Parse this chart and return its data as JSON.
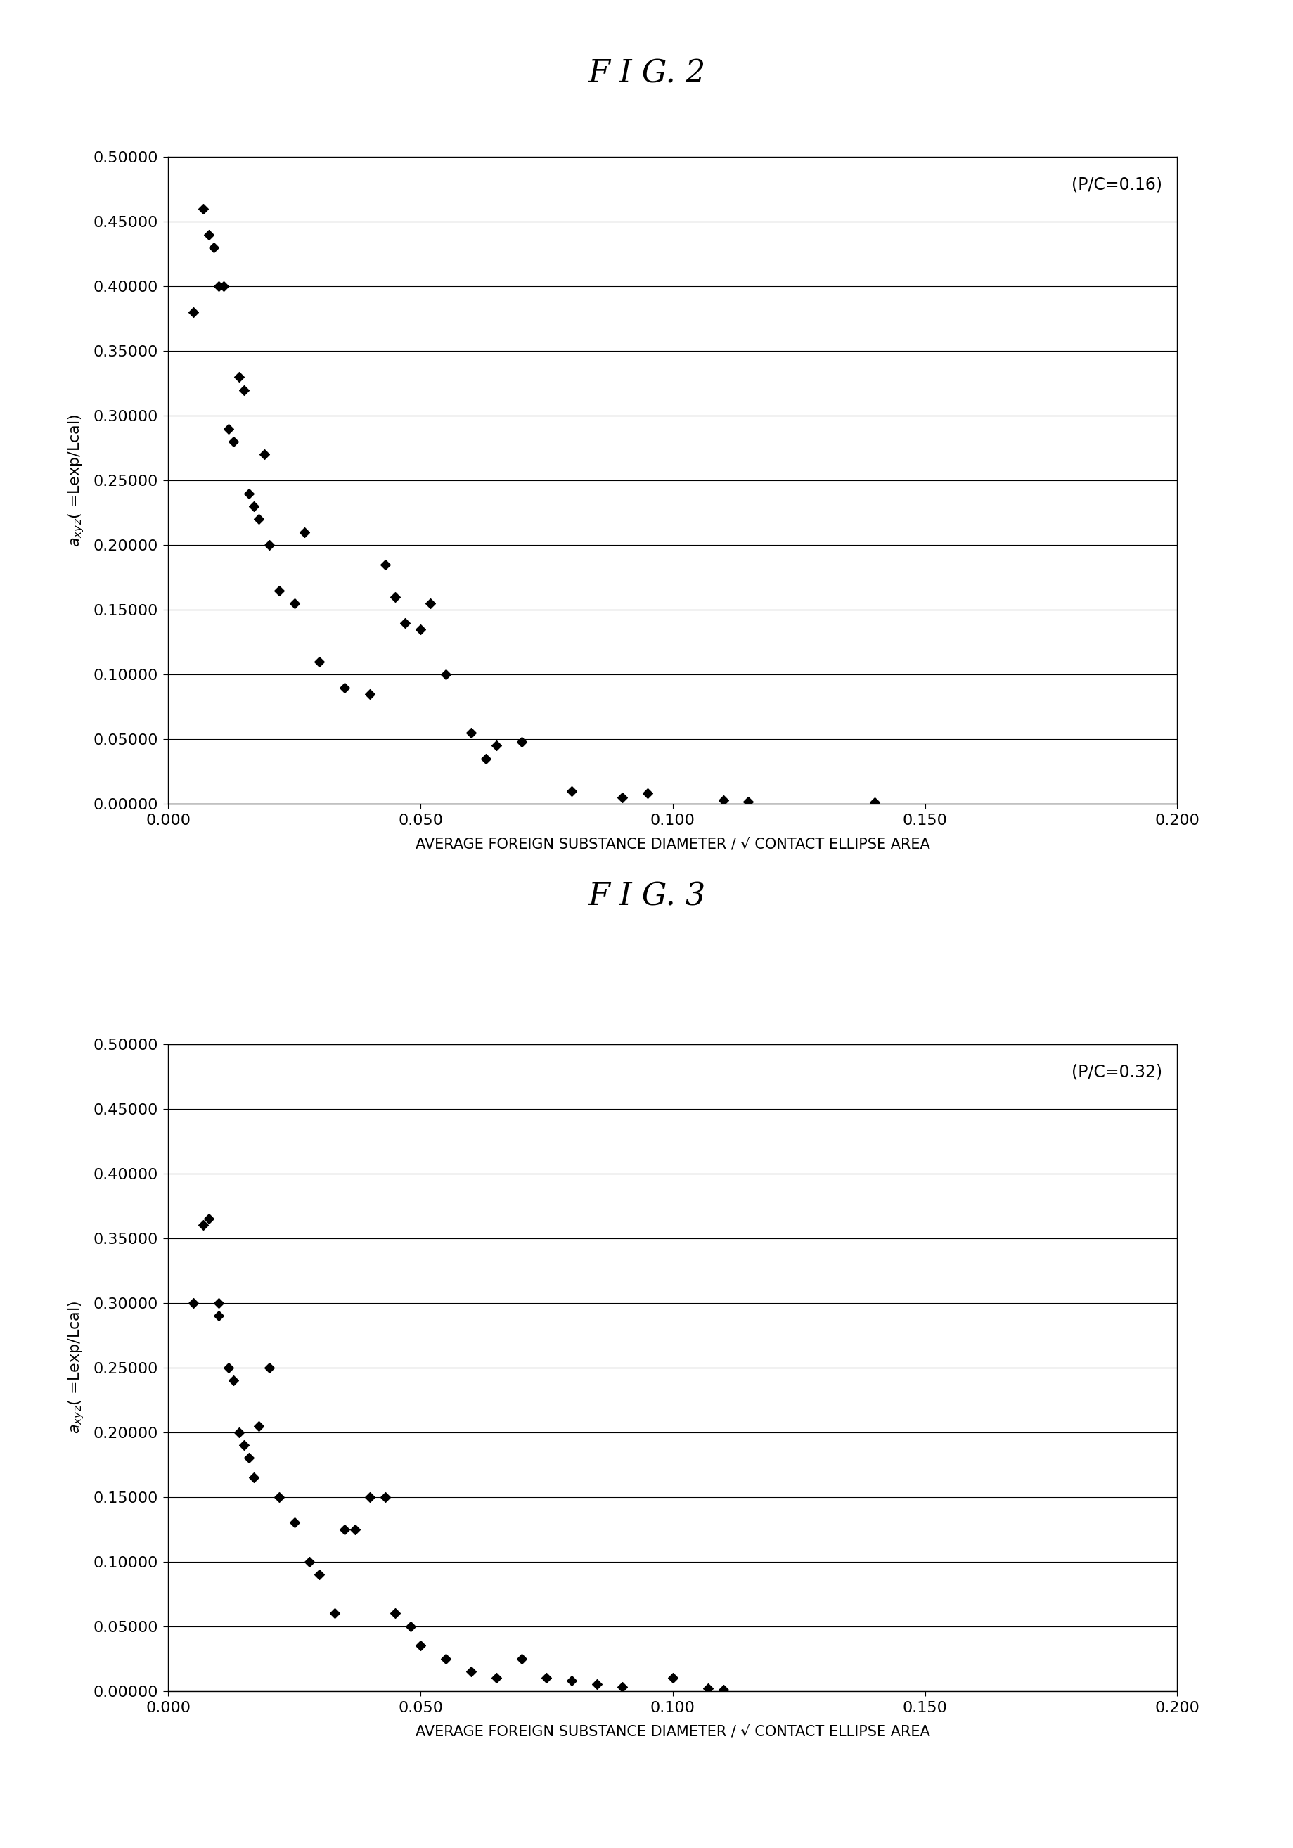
{
  "fig2_title": "F I G. 2",
  "fig3_title": "F I G. 3",
  "fig2_annotation": "(P/C=0.16)",
  "fig3_annotation": "(P/C=0.32)",
  "ylabel": "a_xyz( =Lexp/Lcal)",
  "xlabel": "AVERAGE FOREIGN SUBSTANCE DIAMETER / √ CONTACT ELLIPSE AREA",
  "xlim": [
    0.0,
    0.2
  ],
  "ylim": [
    0.0,
    0.50001
  ],
  "xticks": [
    0.0,
    0.05,
    0.1,
    0.15,
    0.2
  ],
  "yticks": [
    0.0,
    0.05,
    0.1,
    0.15,
    0.2,
    0.25,
    0.3,
    0.35,
    0.4,
    0.45,
    0.5
  ],
  "marker_color": "#000000",
  "marker_style": "D",
  "marker_size": 7,
  "fig2_x": [
    0.005,
    0.007,
    0.008,
    0.009,
    0.01,
    0.011,
    0.012,
    0.013,
    0.014,
    0.015,
    0.016,
    0.017,
    0.018,
    0.019,
    0.02,
    0.022,
    0.025,
    0.027,
    0.03,
    0.035,
    0.04,
    0.043,
    0.045,
    0.047,
    0.05,
    0.052,
    0.055,
    0.06,
    0.063,
    0.065,
    0.07,
    0.08,
    0.09,
    0.095,
    0.11,
    0.115,
    0.14
  ],
  "fig2_y": [
    0.38,
    0.46,
    0.44,
    0.43,
    0.4,
    0.4,
    0.29,
    0.28,
    0.33,
    0.32,
    0.24,
    0.23,
    0.22,
    0.27,
    0.2,
    0.165,
    0.155,
    0.21,
    0.11,
    0.09,
    0.085,
    0.185,
    0.16,
    0.14,
    0.135,
    0.155,
    0.1,
    0.055,
    0.035,
    0.045,
    0.048,
    0.01,
    0.005,
    0.008,
    0.003,
    0.002,
    0.001
  ],
  "fig3_x": [
    0.005,
    0.007,
    0.008,
    0.01,
    0.01,
    0.012,
    0.013,
    0.014,
    0.015,
    0.016,
    0.017,
    0.018,
    0.02,
    0.022,
    0.025,
    0.028,
    0.03,
    0.033,
    0.035,
    0.037,
    0.04,
    0.043,
    0.045,
    0.048,
    0.05,
    0.055,
    0.06,
    0.065,
    0.07,
    0.075,
    0.08,
    0.085,
    0.09,
    0.1,
    0.107,
    0.11
  ],
  "fig3_y": [
    0.3,
    0.36,
    0.365,
    0.3,
    0.29,
    0.25,
    0.24,
    0.2,
    0.19,
    0.18,
    0.165,
    0.205,
    0.25,
    0.15,
    0.13,
    0.1,
    0.09,
    0.06,
    0.125,
    0.125,
    0.15,
    0.15,
    0.06,
    0.05,
    0.035,
    0.025,
    0.015,
    0.01,
    0.025,
    0.01,
    0.008,
    0.005,
    0.003,
    0.01,
    0.002,
    0.001
  ],
  "background_color": "#ffffff",
  "grid_color": "#000000",
  "title_fontsize": 32,
  "tick_fontsize": 16,
  "xlabel_fontsize": 15,
  "ylabel_fontsize": 16,
  "annot_fontsize": 17
}
